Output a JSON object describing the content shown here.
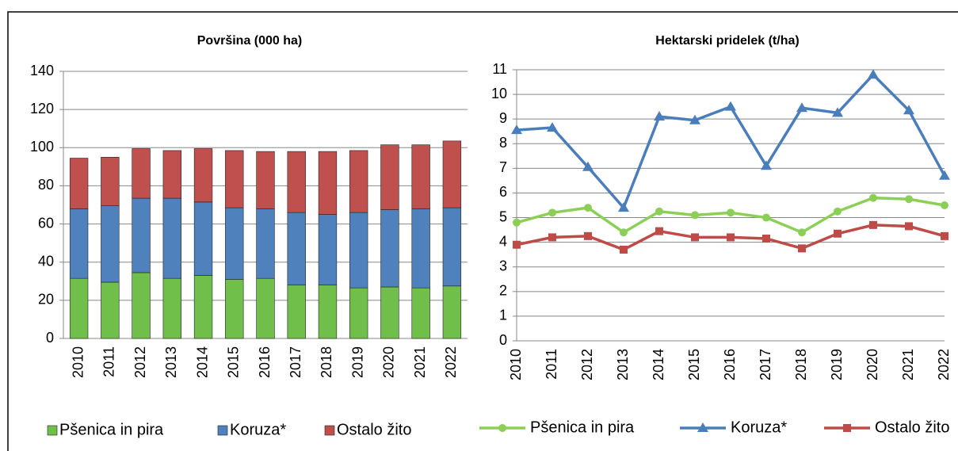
{
  "chart_data": [
    {
      "type": "bar",
      "stacked": true,
      "title": "Površina (000 ha)",
      "categories": [
        "2010",
        "2011",
        "2012",
        "2013",
        "2014",
        "2015",
        "2016",
        "2017",
        "2018",
        "2019",
        "2020",
        "2021",
        "2022"
      ],
      "series": [
        {
          "name": "Pšenica in pira",
          "color": "#6fbf4a",
          "values": [
            31.5,
            29.5,
            34.5,
            31.5,
            33,
            31,
            31.5,
            28,
            28,
            26.5,
            27,
            26.5,
            27.5
          ]
        },
        {
          "name": "Koruza*",
          "color": "#4f81bd",
          "values": [
            36.5,
            40,
            39,
            42,
            38.5,
            37.5,
            36.5,
            38,
            37,
            39.5,
            40.5,
            41.5,
            41
          ]
        },
        {
          "name": "Ostalo žito",
          "color": "#c0504d",
          "values": [
            26.5,
            25.5,
            26,
            25,
            28,
            30,
            30,
            32,
            33,
            32.5,
            34,
            33.5,
            35
          ]
        }
      ],
      "ylim": [
        0,
        140
      ],
      "yticks": [
        0,
        20,
        40,
        60,
        80,
        100,
        120,
        140
      ],
      "grid": true
    },
    {
      "type": "line",
      "title": "Hektarski pridelek (t/ha)",
      "categories": [
        "2010",
        "2011",
        "2012",
        "2013",
        "2014",
        "2015",
        "2016",
        "2017",
        "2018",
        "2019",
        "2020",
        "2021",
        "2022"
      ],
      "series": [
        {
          "name": "Pšenica in pira",
          "color": "#8ccf56",
          "marker": "circle",
          "values": [
            4.8,
            5.2,
            5.4,
            4.4,
            5.25,
            5.1,
            5.2,
            5.0,
            4.4,
            5.25,
            5.8,
            5.75,
            5.5
          ]
        },
        {
          "name": "Koruza*",
          "color": "#4a7ebb",
          "marker": "triangle",
          "values": [
            8.55,
            8.65,
            7.05,
            5.4,
            9.1,
            8.95,
            9.5,
            7.1,
            9.45,
            9.25,
            10.8,
            9.35,
            6.7
          ]
        },
        {
          "name": "Ostalo žito",
          "color": "#be4b48",
          "marker": "square",
          "values": [
            3.9,
            4.2,
            4.25,
            3.7,
            4.45,
            4.2,
            4.2,
            4.15,
            3.75,
            4.35,
            4.7,
            4.65,
            4.25
          ]
        }
      ],
      "ylim": [
        0,
        11
      ],
      "yticks": [
        0,
        1,
        2,
        3,
        4,
        5,
        6,
        7,
        8,
        9,
        10,
        11
      ],
      "grid": true
    }
  ]
}
